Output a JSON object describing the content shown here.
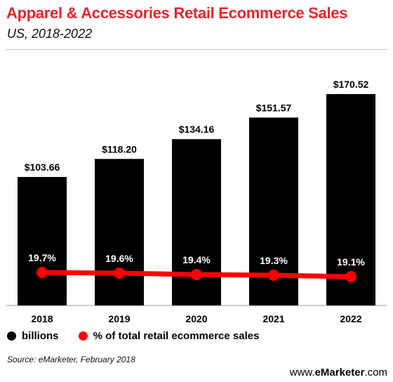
{
  "header": {
    "title": "Apparel & Accessories Retail Ecommerce Sales",
    "subtitle": "US, 2018-2022"
  },
  "colors": {
    "bar": "#000000",
    "line": "#ff0000",
    "title": "#e8242b",
    "label_on_bar": "#ffffff"
  },
  "chart_data": {
    "type": "bar",
    "categories": [
      "2018",
      "2019",
      "2020",
      "2021",
      "2022"
    ],
    "series": [
      {
        "name": "billions",
        "type": "bar",
        "values": [
          103.66,
          118.2,
          134.16,
          151.57,
          170.52
        ],
        "labels": [
          "$103.66",
          "$118.20",
          "$134.16",
          "$151.57",
          "$170.52"
        ]
      },
      {
        "name": "% of total retail ecommerce sales",
        "type": "line",
        "values": [
          19.7,
          19.6,
          19.4,
          19.3,
          19.1
        ],
        "labels": [
          "19.7%",
          "19.6%",
          "19.4%",
          "19.3%",
          "19.1%"
        ]
      }
    ],
    "legend_position": "bottom-left"
  },
  "legend": {
    "bars": "billions",
    "line": "% of total retail ecommerce sales"
  },
  "footer": {
    "source": "Source: eMarketer, February 2018",
    "brand_prefix": "www.",
    "brand_name": "eMarketer",
    "brand_suffix": ".com"
  }
}
